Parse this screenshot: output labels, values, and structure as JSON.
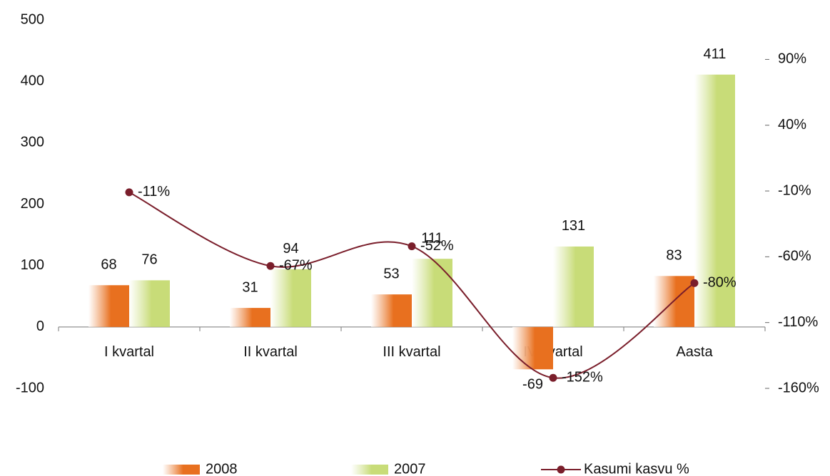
{
  "chart_data": {
    "type": "bar",
    "categories": [
      "I kvartal",
      "II kvartal",
      "III kvartal",
      "IV kvartal",
      "Aasta"
    ],
    "series": [
      {
        "name": "2008",
        "color": "#e8701f",
        "values": [
          68,
          31,
          53,
          -69,
          83
        ]
      },
      {
        "name": "2007",
        "color": "#c8dc78",
        "values": [
          76,
          94,
          111,
          131,
          411
        ]
      },
      {
        "name": "Kasumi kasvu %",
        "color": "#7a1e2b",
        "type": "line",
        "axis": "y2",
        "values": [
          -11,
          -67,
          -52,
          -152,
          -80
        ],
        "value_labels": [
          "-11%",
          "-67%",
          "-52%",
          "-152%",
          "-80%"
        ]
      }
    ],
    "ylim": [
      -100,
      500
    ],
    "yticks": [
      -100,
      0,
      100,
      200,
      300,
      400,
      500
    ],
    "y2lim": [
      -160,
      120
    ],
    "y2ticks": [
      {
        "value": -160,
        "label": "-160%"
      },
      {
        "value": -110,
        "label": "-110%"
      },
      {
        "value": -60,
        "label": "-60%"
      },
      {
        "value": -10,
        "label": "-10%"
      },
      {
        "value": 40,
        "label": "40%"
      },
      {
        "value": 90,
        "label": "90%"
      }
    ],
    "legend": "bottom"
  }
}
